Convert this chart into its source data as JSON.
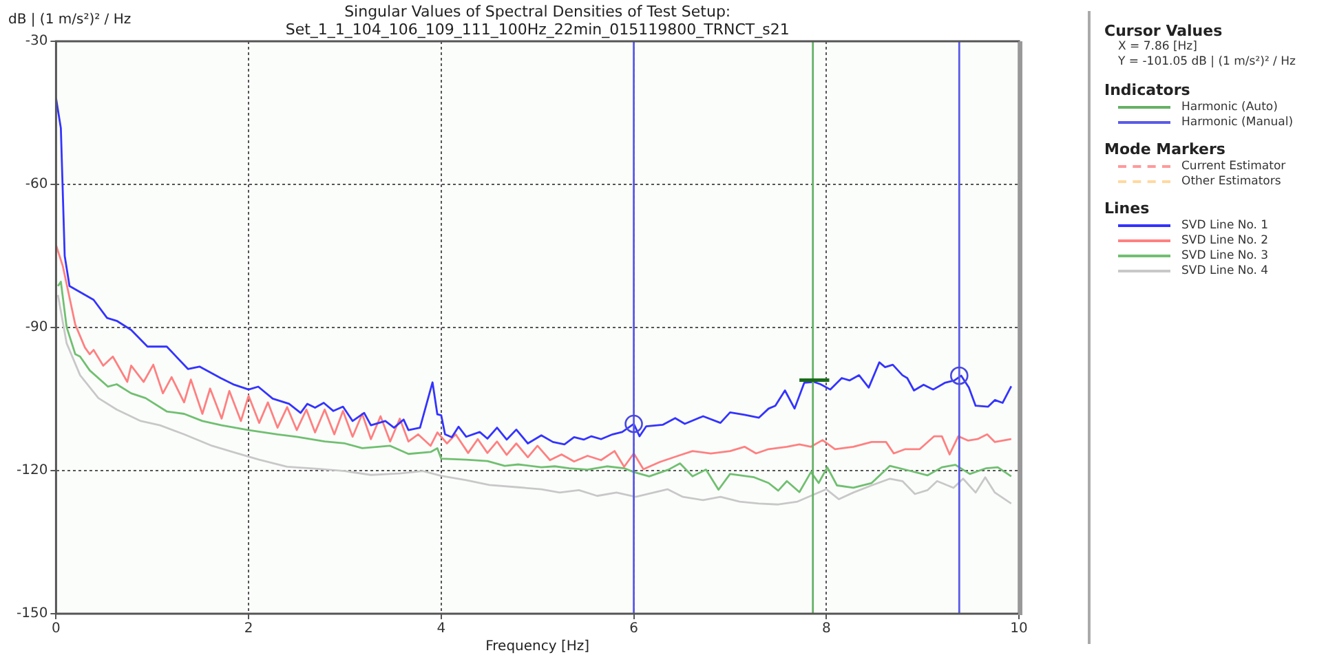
{
  "chart_data": {
    "type": "line",
    "title": "Singular Values of Spectral Densities of Test Setup:",
    "subtitle": "Set_1_1_104_106_109_111_100Hz_22min_015119800_TRNCT_s21",
    "xlabel": "Frequency [Hz]",
    "ylabel": "dB | (1 m/s²)² / Hz",
    "xlim": [
      0,
      10
    ],
    "xticks": [
      0,
      2,
      4,
      6,
      8,
      10
    ],
    "ylim": [
      -150,
      -30
    ],
    "yticks": [
      -150,
      -120,
      -90,
      -60,
      -30
    ],
    "grid": true,
    "legend": "right",
    "annotations": [
      "Cursor Values",
      "X = 7.86 [Hz]",
      "Y = -101.05 dB | (1 m/s²)² / Hz",
      "Indicators",
      "Mode Markers",
      "Lines"
    ],
    "series": [
      {
        "name": "Harmonic (Auto)",
        "color": "#66b066",
        "x": [
          7.86,
          7.86
        ],
        "values": [
          -150,
          -30
        ]
      },
      {
        "name": "Harmonic (Manual)",
        "color": "#5a5ae8",
        "x": [
          6.0,
          6.0,
          null,
          9.38,
          9.38
        ],
        "values": [
          -150,
          -30,
          null,
          -150,
          -30
        ]
      },
      {
        "name": "Current Estimator",
        "color": "#ff9a9a",
        "line_style": "dashed"
      },
      {
        "name": "Other Estimators",
        "color": "#ffd9a0",
        "line_style": "dashed"
      },
      {
        "name": "SVD Line No. 1",
        "color": "#3333ff",
        "x": [
          0,
          0.05,
          0.09,
          0.14,
          0.39,
          0.53,
          0.63,
          0.78,
          0.95,
          1.15,
          1.37,
          1.49,
          1.71,
          1.85,
          2.0,
          2.1,
          2.25,
          2.42,
          2.54,
          2.61,
          2.69,
          2.78,
          2.88,
          2.98,
          3.08,
          3.2,
          3.27,
          3.42,
          3.51,
          3.61,
          3.66,
          3.78,
          3.91,
          3.96,
          4.0,
          4.04,
          4.11,
          4.18,
          4.26,
          4.4,
          4.48,
          4.58,
          4.68,
          4.78,
          4.9,
          5.04,
          5.16,
          5.28,
          5.38,
          5.48,
          5.56,
          5.66,
          5.78,
          5.88,
          6.0,
          6.06,
          6.13,
          6.3,
          6.43,
          6.53,
          6.72,
          6.9,
          7.0,
          7.15,
          7.3,
          7.4,
          7.47,
          7.57,
          7.67,
          7.77,
          7.87,
          7.94,
          8.04,
          8.16,
          8.24,
          8.34,
          8.44,
          8.55,
          8.61,
          8.69,
          8.79,
          8.84,
          8.91,
          9.01,
          9.11,
          9.23,
          9.33,
          9.4,
          9.48,
          9.55,
          9.68,
          9.75,
          9.83,
          9.92
        ],
        "values": [
          -41.9,
          -48.2,
          -75,
          -81.3,
          -84.2,
          -88,
          -88.6,
          -90.5,
          -94,
          -94,
          -98.7,
          -98.2,
          -100.6,
          -102,
          -103,
          -102.4,
          -104.9,
          -106,
          -107.9,
          -106,
          -106.8,
          -105.8,
          -107.5,
          -106.6,
          -109.6,
          -107.9,
          -110.5,
          -109.6,
          -111,
          -109.3,
          -111.5,
          -111,
          -101.5,
          -108.2,
          -108.4,
          -112.4,
          -113,
          -110.8,
          -112.9,
          -111.9,
          -113.3,
          -111,
          -113.5,
          -111.4,
          -114.3,
          -112.6,
          -114,
          -114.5,
          -113,
          -113.5,
          -112.8,
          -113.4,
          -112.4,
          -111.9,
          -110.2,
          -112.8,
          -110.7,
          -110.4,
          -109,
          -110.2,
          -108.6,
          -110,
          -107.8,
          -108.3,
          -108.9,
          -107,
          -106.4,
          -103.2,
          -107,
          -101.6,
          -101.4,
          -101.9,
          -103,
          -100.6,
          -101.1,
          -100,
          -102.6,
          -97.3,
          -98.3,
          -97.8,
          -100,
          -100.6,
          -103.2,
          -102,
          -103,
          -101.6,
          -101.1,
          -100.1,
          -102.6,
          -106.4,
          -106.6,
          -105.2,
          -105.8,
          -102.3
        ]
      },
      {
        "name": "SVD Line No. 2",
        "color": "#ff8080",
        "x": [
          0,
          0.07,
          0.2,
          0.3,
          0.35,
          0.39,
          0.49,
          0.59,
          0.74,
          0.78,
          0.91,
          1.01,
          1.11,
          1.2,
          1.33,
          1.4,
          1.52,
          1.6,
          1.72,
          1.8,
          1.92,
          2.0,
          2.11,
          2.2,
          2.3,
          2.4,
          2.5,
          2.6,
          2.69,
          2.79,
          2.89,
          2.98,
          3.08,
          3.18,
          3.27,
          3.37,
          3.47,
          3.57,
          3.66,
          3.76,
          3.89,
          3.96,
          4.06,
          4.15,
          4.28,
          4.38,
          4.48,
          4.58,
          4.68,
          4.78,
          4.9,
          5.0,
          5.13,
          5.25,
          5.38,
          5.52,
          5.66,
          5.8,
          5.9,
          6.0,
          6.1,
          6.27,
          6.46,
          6.61,
          6.8,
          7.0,
          7.15,
          7.27,
          7.4,
          7.59,
          7.72,
          7.84,
          7.96,
          8.09,
          8.28,
          8.47,
          8.62,
          8.7,
          8.82,
          8.97,
          9.12,
          9.2,
          9.28,
          9.37,
          9.47,
          9.57,
          9.67,
          9.75,
          9.92
        ],
        "values": [
          -72.7,
          -77.1,
          -89.4,
          -94.2,
          -95.6,
          -94.7,
          -98,
          -96.1,
          -101.4,
          -98,
          -101.4,
          -97.8,
          -103.8,
          -100.4,
          -105.7,
          -100.9,
          -108.1,
          -102.8,
          -109.1,
          -103.3,
          -109.6,
          -104.3,
          -110,
          -105.7,
          -111,
          -106.7,
          -111.5,
          -107.2,
          -112,
          -107.2,
          -112.4,
          -107.5,
          -112.9,
          -108.1,
          -113.4,
          -108.6,
          -113.9,
          -109.1,
          -113.9,
          -112.4,
          -114.8,
          -112,
          -114.3,
          -112.4,
          -116.3,
          -113.4,
          -116.3,
          -113.9,
          -116.7,
          -114.3,
          -117.2,
          -114.8,
          -117.8,
          -116.6,
          -118.1,
          -116.9,
          -117.8,
          -115.9,
          -119.2,
          -116.4,
          -119.7,
          -118.2,
          -116.9,
          -115.9,
          -116.4,
          -115.9,
          -115,
          -116.4,
          -115.5,
          -115,
          -114.5,
          -115,
          -113.6,
          -115.5,
          -115,
          -114,
          -114,
          -116.4,
          -115.5,
          -115.5,
          -112.8,
          -112.8,
          -116.6,
          -112.8,
          -113.7,
          -113.4,
          -112.4,
          -114,
          -113.4
        ]
      },
      {
        "name": "SVD Line No. 3",
        "color": "#70bf70",
        "x": [
          0.02,
          0.05,
          0.11,
          0.2,
          0.25,
          0.35,
          0.54,
          0.63,
          0.78,
          0.93,
          1.15,
          1.33,
          1.52,
          1.72,
          2.0,
          2.3,
          2.5,
          2.79,
          3.0,
          3.18,
          3.47,
          3.66,
          3.89,
          3.96,
          4.0,
          4.26,
          4.48,
          4.66,
          4.8,
          5.04,
          5.18,
          5.33,
          5.52,
          5.72,
          5.9,
          6.0,
          6.16,
          6.36,
          6.48,
          6.61,
          6.75,
          6.88,
          7.0,
          7.25,
          7.4,
          7.5,
          7.59,
          7.72,
          7.84,
          7.92,
          8.01,
          8.11,
          8.28,
          8.47,
          8.66,
          8.86,
          9.05,
          9.2,
          9.34,
          9.49,
          9.66,
          9.78,
          9.92
        ],
        "values": [
          -81.3,
          -80.4,
          -89.9,
          -95.6,
          -96.1,
          -99,
          -102.4,
          -101.9,
          -103.8,
          -104.8,
          -107.6,
          -108.1,
          -109.6,
          -110.5,
          -111.5,
          -112.4,
          -112.9,
          -113.9,
          -114.3,
          -115.3,
          -114.8,
          -116.5,
          -116.1,
          -115.3,
          -117.5,
          -117.7,
          -118,
          -119,
          -118.7,
          -119.3,
          -119.1,
          -119.5,
          -119.8,
          -119.1,
          -119.5,
          -120.3,
          -121.2,
          -119.8,
          -118.5,
          -121.2,
          -119.8,
          -124,
          -120.7,
          -121.4,
          -122.6,
          -124.2,
          -122.2,
          -124.5,
          -120.3,
          -122.6,
          -119.3,
          -123.1,
          -123.6,
          -122.6,
          -119,
          -120,
          -121,
          -119.3,
          -118.8,
          -120.7,
          -119.5,
          -119.3,
          -121.2
        ]
      },
      {
        "name": "SVD Line No. 4",
        "color": "#c8c8c8",
        "x": [
          0.02,
          0.11,
          0.25,
          0.44,
          0.63,
          0.88,
          1.08,
          1.33,
          1.62,
          1.87,
          2.11,
          2.4,
          2.69,
          3.0,
          3.27,
          3.57,
          3.81,
          4.0,
          4.26,
          4.5,
          4.8,
          5.04,
          5.23,
          5.43,
          5.62,
          5.82,
          6.02,
          6.35,
          6.51,
          6.72,
          6.9,
          7.1,
          7.3,
          7.5,
          7.7,
          8.0,
          8.13,
          8.28,
          8.47,
          8.66,
          8.79,
          8.92,
          9.05,
          9.15,
          9.32,
          9.42,
          9.55,
          9.65,
          9.75,
          9.92
        ],
        "values": [
          -83.2,
          -93.3,
          -100,
          -104.8,
          -107.2,
          -109.6,
          -110.5,
          -112.4,
          -114.8,
          -116.3,
          -117.7,
          -119.2,
          -119.6,
          -120.1,
          -120.9,
          -120.6,
          -120.1,
          -121.1,
          -122,
          -123,
          -123.5,
          -123.9,
          -124.6,
          -124.1,
          -125.3,
          -124.6,
          -125.5,
          -123.9,
          -125.5,
          -126.2,
          -125.5,
          -126.5,
          -126.9,
          -127.1,
          -126.5,
          -123.9,
          -126,
          -124.6,
          -123.1,
          -121.7,
          -122.2,
          -124.9,
          -124.1,
          -122.2,
          -123.6,
          -121.7,
          -124.6,
          -121.4,
          -124.6,
          -126.9
        ]
      },
      {
        "type": "scatter",
        "marker": "circle",
        "color": "#4848e0",
        "x": [
          6.0,
          9.38
        ],
        "values": [
          -110.2,
          -100.1
        ]
      },
      {
        "type": "line",
        "color": "#1a6b1a",
        "x": [
          7.72,
          8.03
        ],
        "values": [
          -101.05,
          -101.05
        ]
      }
    ]
  }
}
